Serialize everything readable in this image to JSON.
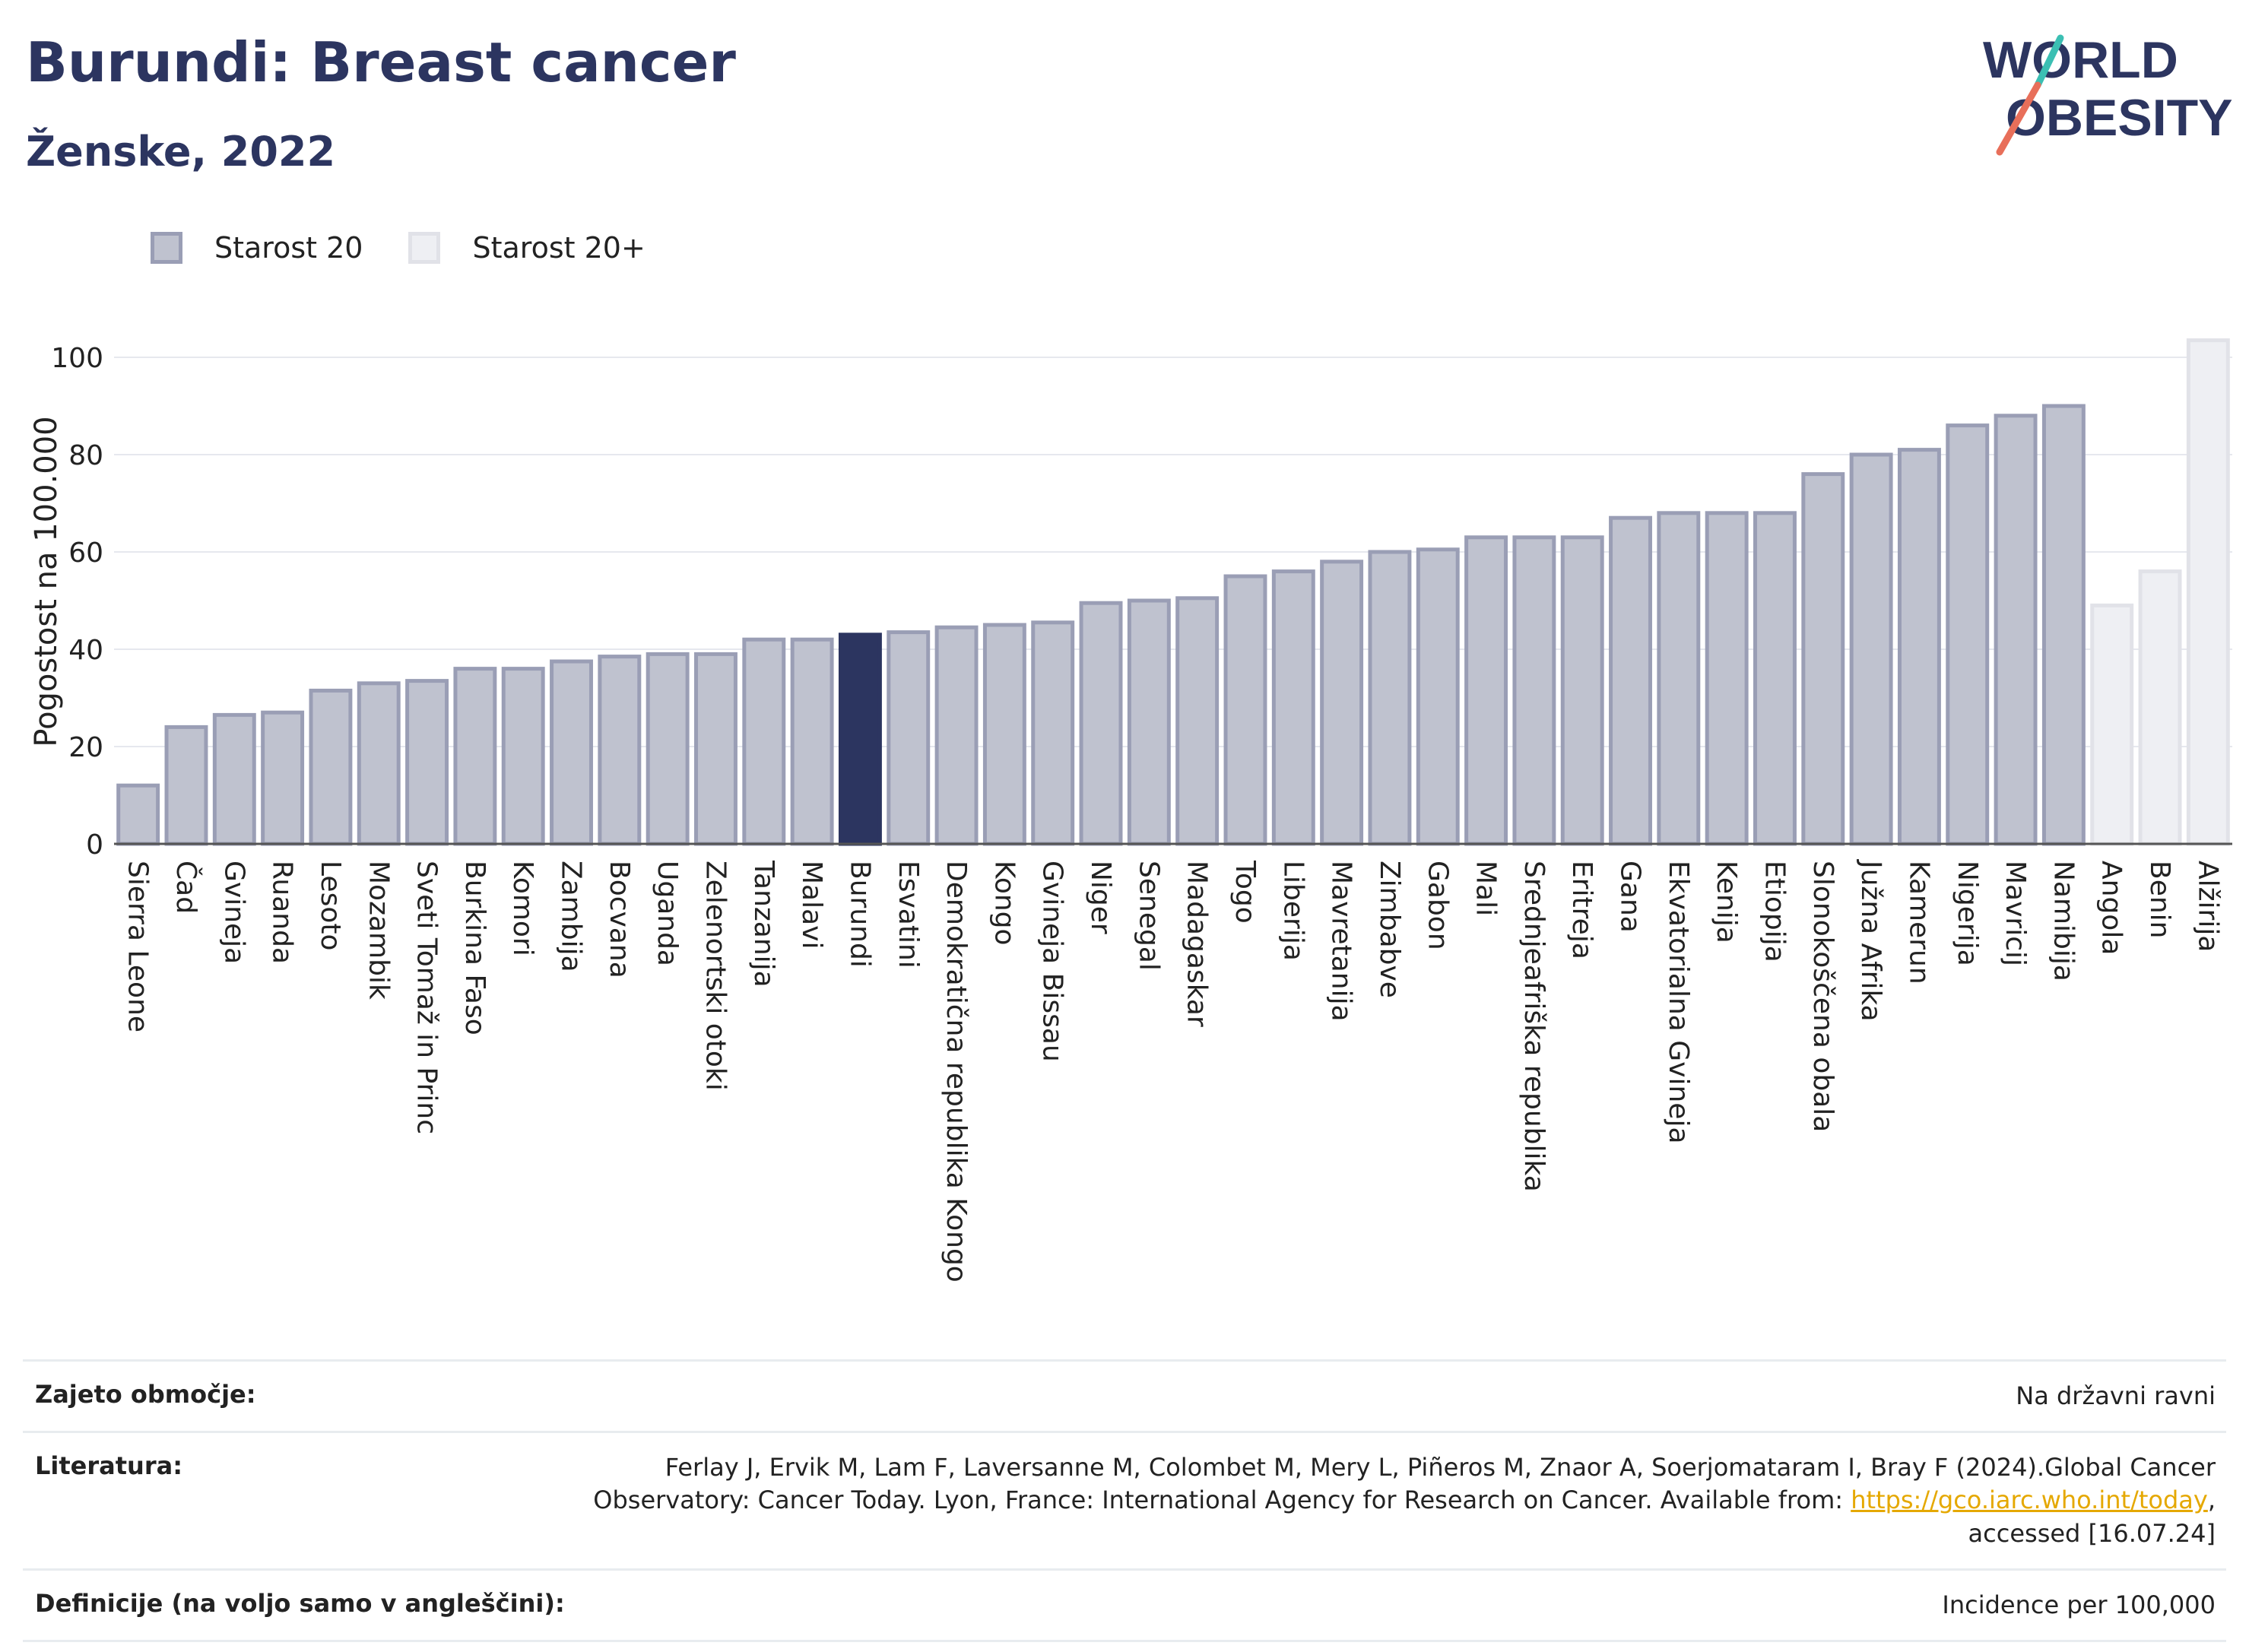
{
  "header": {
    "title": "Burundi: Breast cancer",
    "subtitle": "Ženske, 2022",
    "logo_text_1": "WORLD",
    "logo_text_2": "OBESITY"
  },
  "legend": {
    "items": [
      {
        "label": "Starost 20",
        "color": "#bfc2cf"
      },
      {
        "label": "Starost 20+",
        "color": "#eeeff3"
      }
    ]
  },
  "chart_data": {
    "type": "bar",
    "ylabel": "Pogostost na 100.000",
    "ylim": [
      0,
      105
    ],
    "yticks": [
      0,
      20,
      40,
      60,
      80,
      100
    ],
    "grid": true,
    "highlight": "Burundi",
    "colors": {
      "age20": "#bfc2cf",
      "age20plus": "#eeeff3",
      "highlight": "#2c3560",
      "age20_border": "#9a9eb5",
      "age20plus_border": "#e1e2e8"
    },
    "categories": [
      "Sierra Leone",
      "Čad",
      "Gvineja",
      "Ruanda",
      "Lesoto",
      "Mozambik",
      "Sveti Tomaž in Princ",
      "Burkina Faso",
      "Komori",
      "Zambija",
      "Bocvana",
      "Uganda",
      "Zelenortski otoki",
      "Tanzanija",
      "Malavi",
      "Burundi",
      "Esvatini",
      "Demokratična republika Kongo",
      "Kongo",
      "Gvineja Bissau",
      "Niger",
      "Senegal",
      "Madagaskar",
      "Togo",
      "Liberija",
      "Mavretanija",
      "Zimbabve",
      "Gabon",
      "Mali",
      "Srednjeafriška republika",
      "Eritreja",
      "Gana",
      "Ekvatorialna Gvineja",
      "Kenija",
      "Etiopija",
      "Slonokoščena obala",
      "Južna Afrika",
      "Kamerun",
      "Nigerija",
      "Mavricij",
      "Namibija",
      "Angola",
      "Benin",
      "Alžirija"
    ],
    "values": [
      12,
      24,
      26.5,
      27,
      31.5,
      33,
      33.5,
      36,
      36,
      37.5,
      38.5,
      39,
      39,
      42,
      42,
      43,
      43.5,
      44.5,
      45,
      45.5,
      49.5,
      50,
      50.5,
      55,
      56,
      58,
      60,
      60.5,
      63,
      63,
      63,
      67,
      68,
      68,
      68,
      76,
      80,
      81,
      86,
      88,
      90,
      49,
      56,
      103.5
    ],
    "groups": [
      "20",
      "20",
      "20",
      "20",
      "20",
      "20",
      "20",
      "20",
      "20",
      "20",
      "20",
      "20",
      "20",
      "20",
      "20",
      "20",
      "20",
      "20",
      "20",
      "20",
      "20",
      "20",
      "20",
      "20",
      "20",
      "20",
      "20",
      "20",
      "20",
      "20",
      "20",
      "20",
      "20",
      "20",
      "20",
      "20",
      "20",
      "20",
      "20",
      "20",
      "20",
      "20+",
      "20+",
      "20+"
    ]
  },
  "info": {
    "rows": [
      {
        "label": "Zajeto območje:",
        "value": "Na državni ravni"
      },
      {
        "label": "Literatura:",
        "value_pre": "Ferlay J, Ervik M, Lam F, Laversanne M, Colombet M, Mery L, Piñeros M, Znaor A, Soerjomataram I, Bray F (2024).Global Cancer Observatory: Cancer Today. Lyon, France: International Agency for Research on Cancer. Available from: ",
        "link": "https://gco.iarc.who.int/today",
        "value_post": ", accessed [16.07.24]"
      },
      {
        "label": "Definicije (na voljo samo v angleščini):",
        "value": "Incidence per 100,000"
      }
    ]
  }
}
